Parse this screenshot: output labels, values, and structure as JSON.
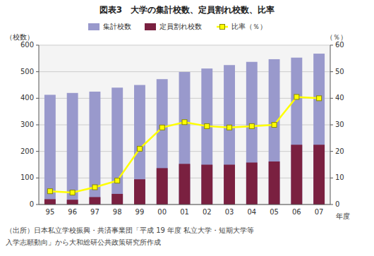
{
  "chart_data": {
    "type": "bar",
    "title": "図表3　大学の集計校数、定員割れ校数、比率",
    "ylabel": "（校数）",
    "y2label": "（％）",
    "xlabel": "年度",
    "annotations": [
      "（出所）日本私立学校振興・共済事業団「平成 19 年度 私立大学・短期大学等",
      "入学志願動向」から大和総研公共政策研究所作成"
    ],
    "categories": [
      "95",
      "96",
      "97",
      "98",
      "99",
      "00",
      "01",
      "02",
      "03",
      "04",
      "05",
      "06",
      "07"
    ],
    "series": [
      {
        "name": "集計校数",
        "type": "bar",
        "color": "#9999cc",
        "values": [
          413,
          420,
          425,
          440,
          450,
          472,
          499,
          512,
          525,
          537,
          547,
          553,
          568
        ]
      },
      {
        "name": "定員割れ校数",
        "type": "bar",
        "color": "#7a2040",
        "values": [
          20,
          18,
          28,
          40,
          95,
          137,
          153,
          150,
          150,
          158,
          162,
          225,
          225
        ]
      },
      {
        "name": "比率（％）",
        "type": "line",
        "axis": "y2",
        "color": "#ffff00",
        "marker": "square",
        "values": [
          5.0,
          4.5,
          6.5,
          9.0,
          21.0,
          29.0,
          31.0,
          29.5,
          29.0,
          29.5,
          30.0,
          40.5,
          40.0
        ]
      }
    ],
    "ylim": [
      0,
      600
    ],
    "yticks": [
      0,
      100,
      200,
      300,
      400,
      500,
      600
    ],
    "y2lim": [
      0,
      60
    ],
    "y2ticks": [
      0,
      10,
      20,
      30,
      40,
      50,
      60
    ],
    "grid": true,
    "legend": "top"
  }
}
